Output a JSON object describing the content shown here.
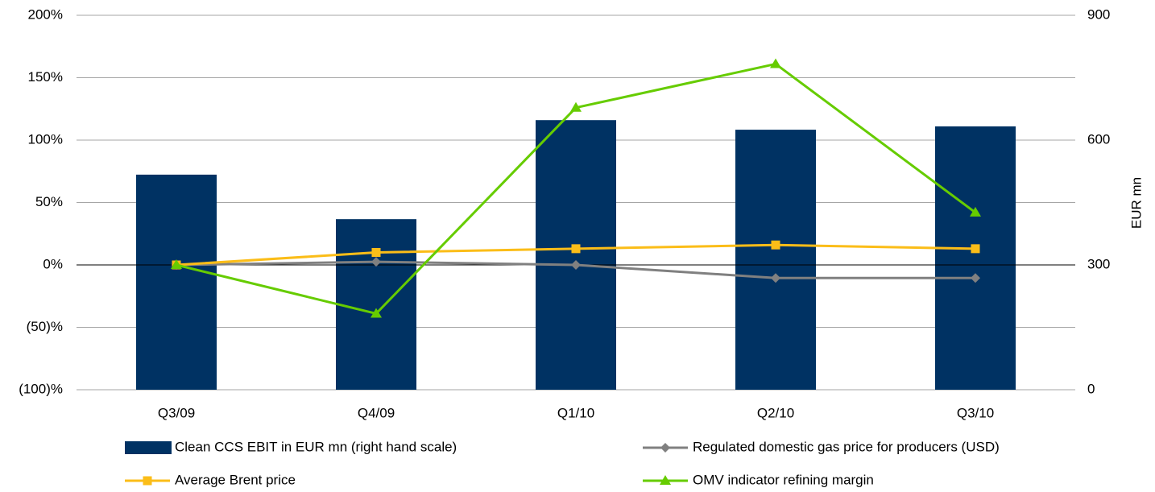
{
  "chart_data": {
    "type": "bar-line",
    "categories": [
      "Q3/09",
      "Q4/09",
      "Q1/10",
      "Q2/10",
      "Q3/10"
    ],
    "ylim": [
      -100,
      200
    ],
    "yticks": [
      {
        "value": -100,
        "label": "(100)%"
      },
      {
        "value": -50,
        "label": "(50)%"
      },
      {
        "value": 0,
        "label": "0%"
      },
      {
        "value": 50,
        "label": "50%"
      },
      {
        "value": 100,
        "label": "100%"
      },
      {
        "value": 150,
        "label": "150%"
      },
      {
        "value": 200,
        "label": "200%"
      }
    ],
    "y2lim": [
      0,
      900
    ],
    "y2ticks": [
      0,
      300,
      600,
      900
    ],
    "y2label": "EUR mn",
    "grid": true,
    "legend": "bottom",
    "series": [
      {
        "name": "Clean CCS EBIT in EUR mn (right hand scale)",
        "type": "bar",
        "axis": "y2",
        "color": "#003263",
        "values": [
          517,
          410,
          648,
          625,
          633
        ]
      },
      {
        "name": "Regulated domestic gas price for producers (USD)",
        "type": "line",
        "marker": "diamond",
        "color": "#808080",
        "values": [
          0,
          2.5,
          0,
          -10.5,
          -10.5
        ]
      },
      {
        "name": "Average Brent price",
        "type": "line",
        "marker": "square",
        "color": "#fbbd18",
        "values": [
          0,
          10,
          13,
          16,
          13
        ]
      },
      {
        "name": "OMV indicator refining margin",
        "type": "line",
        "marker": "triangle",
        "color": "#66cc00",
        "values": [
          0,
          -39,
          126,
          161,
          42
        ]
      }
    ]
  }
}
